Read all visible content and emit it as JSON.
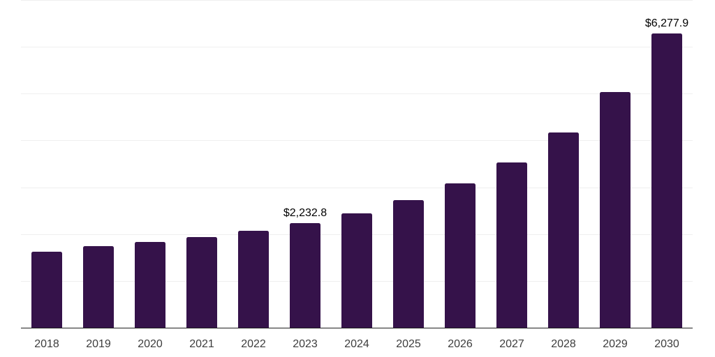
{
  "chart_data": {
    "type": "bar",
    "categories": [
      "2018",
      "2019",
      "2020",
      "2021",
      "2022",
      "2023",
      "2024",
      "2025",
      "2026",
      "2027",
      "2028",
      "2029",
      "2030"
    ],
    "values": [
      1620,
      1743,
      1826,
      1933,
      2067,
      2232.8,
      2450,
      2720,
      3080,
      3526,
      4177,
      5038,
      6277.9
    ],
    "data_labels": {
      "2023": "$2,232.8",
      "2030": "$6,277.9"
    },
    "ylim": [
      0,
      7000
    ],
    "gridline_step": 1000,
    "grid": true,
    "legend": "none",
    "xlabel": "",
    "ylabel": "",
    "y_tick_labels_visible": false,
    "colors": {
      "bar": "#35124a",
      "gridline": "#efefef",
      "axis_line": "#1f1f1f",
      "tick_label": "#3d3d3d",
      "data_label": "#000000",
      "background": "#ffffff"
    }
  }
}
